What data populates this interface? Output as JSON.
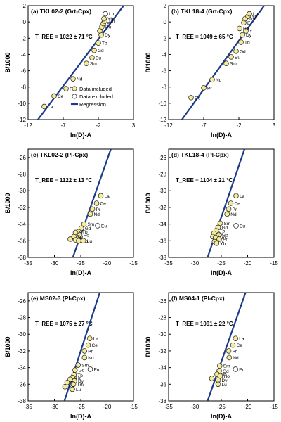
{
  "colors": {
    "included_fill": "#f6eb98",
    "included_stroke": "#333333",
    "excluded_fill": "#ffffff",
    "regression": "#1b3a8a",
    "axis": "#000000"
  },
  "legend": {
    "included": "Data included",
    "excluded": "Data excluded",
    "regression": "Regression"
  },
  "chart_data": [
    {
      "type": "scatter",
      "title": "(a) TKL02-2 (Grt-Cpx)",
      "temperature": "T_REE = 1022 ± 71 °C",
      "xlabel": "ln(D)-A",
      "ylabel": "B/1000",
      "xlim": [
        -12,
        3
      ],
      "ylim": [
        -12,
        2
      ],
      "xticks": [
        -12,
        -7,
        -2,
        3
      ],
      "yticks": [
        2,
        0,
        -2,
        -4,
        -6,
        -8,
        -10,
        -12
      ],
      "legend": "bottom-right",
      "regression": [
        [
          -10.6,
          -12
        ],
        [
          1.6,
          2
        ]
      ],
      "points": [
        {
          "label": "La",
          "x": -9.7,
          "y": -10.4,
          "included": true
        },
        {
          "label": "Ce",
          "x": -8.3,
          "y": -9.1,
          "included": true
        },
        {
          "label": "Pr",
          "x": -6.6,
          "y": -8.2,
          "included": true
        },
        {
          "label": "Nd",
          "x": -5.6,
          "y": -7.0,
          "included": true
        },
        {
          "label": "Sm",
          "x": -3.7,
          "y": -5.1,
          "included": true
        },
        {
          "label": "Eu",
          "x": -2.9,
          "y": -4.4,
          "included": true
        },
        {
          "label": "Gd",
          "x": -2.6,
          "y": -3.5,
          "included": true
        },
        {
          "label": "Tb",
          "x": -2.0,
          "y": -2.6,
          "included": true
        },
        {
          "label": "Dy",
          "x": -1.6,
          "y": -1.6,
          "included": true
        },
        {
          "label": "Y",
          "x": -1.8,
          "y": -1.1,
          "included": true
        },
        {
          "label": "Ho",
          "x": -1.5,
          "y": -0.6,
          "included": true
        },
        {
          "label": "Er",
          "x": -1.3,
          "y": -0.2,
          "included": true
        },
        {
          "label": "Tm",
          "x": -1.1,
          "y": 0.1,
          "included": true
        },
        {
          "label": "Yb",
          "x": -1.2,
          "y": 0.4,
          "included": true
        },
        {
          "label": "Lu",
          "x": -1.0,
          "y": 1.0,
          "included": false
        }
      ]
    },
    {
      "type": "scatter",
      "title": "(b) TKL18-4 (Grt-Cpx)",
      "temperature": "T_REE = 1049 ± 65 °C",
      "xlabel": "ln(D)-A",
      "ylabel": "B/1000",
      "xlim": [
        -12,
        3
      ],
      "ylim": [
        -12,
        2
      ],
      "xticks": [
        -12,
        -7,
        -2,
        3
      ],
      "yticks": [
        2,
        0,
        -2,
        -4,
        -6,
        -8,
        -10,
        -12
      ],
      "regression": [
        [
          -10.1,
          -12
        ],
        [
          1.6,
          2
        ]
      ],
      "points": [
        {
          "label": "Ce",
          "x": -8.8,
          "y": -9.3,
          "included": true
        },
        {
          "label": "Pr",
          "x": -7.0,
          "y": -8.1,
          "included": true
        },
        {
          "label": "Nd",
          "x": -5.8,
          "y": -7.1,
          "included": true
        },
        {
          "label": "Sm",
          "x": -3.8,
          "y": -5.1,
          "included": true
        },
        {
          "label": "Eu",
          "x": -3.1,
          "y": -4.3,
          "included": true
        },
        {
          "label": "Gd",
          "x": -2.4,
          "y": -3.6,
          "included": true
        },
        {
          "label": "Tb",
          "x": -1.7,
          "y": -2.5,
          "included": true
        },
        {
          "label": "Dy",
          "x": -1.5,
          "y": -1.6,
          "included": true
        },
        {
          "label": "Y",
          "x": -1.0,
          "y": -1.1,
          "included": true
        },
        {
          "label": "Ho",
          "x": -1.9,
          "y": -0.8,
          "included": true
        },
        {
          "label": "Er",
          "x": -1.3,
          "y": -0.1,
          "included": true
        },
        {
          "label": "Tm",
          "x": -1.1,
          "y": 0.4,
          "included": true
        },
        {
          "label": "Yb",
          "x": -0.7,
          "y": 0.7,
          "included": true
        },
        {
          "label": "Lu",
          "x": -0.5,
          "y": 1.0,
          "included": true
        }
      ]
    },
    {
      "type": "scatter",
      "title": "(c) TKL02-2 (Pl-Cpx)",
      "temperature": "T_REE = 1122 ± 13 °C",
      "xlabel": "ln(D)-A",
      "ylabel": "B/1000",
      "xlim": [
        -35,
        -15
      ],
      "ylim": [
        -38,
        -25
      ],
      "xticks": [
        -35,
        -30,
        -25,
        -20,
        -15
      ],
      "yticks": [
        -26,
        -28,
        -30,
        -32,
        -34,
        -36,
        -38
      ],
      "regression": [
        [
          -26.5,
          -38
        ],
        [
          -19.3,
          -25
        ]
      ],
      "points": [
        {
          "label": "La",
          "x": -21.2,
          "y": -30.6,
          "included": true
        },
        {
          "label": "Ce",
          "x": -22.0,
          "y": -31.5,
          "included": true
        },
        {
          "label": "Pr",
          "x": -22.8,
          "y": -32.2,
          "included": true
        },
        {
          "label": "Nd",
          "x": -23.2,
          "y": -32.8,
          "included": true
        },
        {
          "label": "Sm",
          "x": -24.4,
          "y": -34.0,
          "included": true
        },
        {
          "label": "Eu",
          "x": -21.8,
          "y": -34.2,
          "included": false
        },
        {
          "label": "Gd",
          "x": -24.9,
          "y": -34.5,
          "included": true
        },
        {
          "label": "Tb",
          "x": -25.4,
          "y": -34.9,
          "included": true
        },
        {
          "label": "Y",
          "x": -26.0,
          "y": -35.0,
          "included": true
        },
        {
          "label": "Ho",
          "x": -25.2,
          "y": -35.3,
          "included": true
        },
        {
          "label": "Dy",
          "x": -26.3,
          "y": -35.5,
          "included": true
        },
        {
          "label": "Er",
          "x": -27.0,
          "y": -35.8,
          "included": true
        },
        {
          "label": "Tm",
          "x": -26.0,
          "y": -35.9,
          "included": true
        },
        {
          "label": "Yb",
          "x": -25.4,
          "y": -36.0,
          "included": true
        },
        {
          "label": "Lu",
          "x": -24.5,
          "y": -36.0,
          "included": true
        }
      ]
    },
    {
      "type": "scatter",
      "title": "(d) TKL18-4 (Pl-Cpx)",
      "temperature": "T_REE = 1104 ± 21 °C",
      "xlabel": "ln(D)-A",
      "ylabel": "B/1000",
      "xlim": [
        -35,
        -15
      ],
      "ylim": [
        -38,
        -25
      ],
      "xticks": [
        -35,
        -30,
        -25,
        -20,
        -15
      ],
      "yticks": [
        -26,
        -28,
        -30,
        -32,
        -34,
        -36,
        -38
      ],
      "regression": [
        [
          -27.6,
          -38
        ],
        [
          -20.6,
          -25
        ]
      ],
      "points": [
        {
          "label": "La",
          "x": -22.2,
          "y": -30.6,
          "included": true
        },
        {
          "label": "Ce",
          "x": -23.2,
          "y": -31.5,
          "included": true
        },
        {
          "label": "Pr",
          "x": -23.6,
          "y": -32.2,
          "included": true
        },
        {
          "label": "Nd",
          "x": -23.9,
          "y": -32.8,
          "included": true
        },
        {
          "label": "Sm",
          "x": -25.2,
          "y": -33.9,
          "included": true
        },
        {
          "label": "Eu",
          "x": -22.2,
          "y": -34.2,
          "included": false
        },
        {
          "label": "Gd",
          "x": -25.6,
          "y": -34.4,
          "included": true
        },
        {
          "label": "Tb",
          "x": -26.0,
          "y": -34.8,
          "included": true
        },
        {
          "label": "Dy",
          "x": -26.4,
          "y": -35.1,
          "included": true
        },
        {
          "label": "Ho",
          "x": -25.5,
          "y": -35.3,
          "included": true
        },
        {
          "label": "Y",
          "x": -26.6,
          "y": -35.5,
          "included": true
        },
        {
          "label": "Tm",
          "x": -26.1,
          "y": -35.6,
          "included": true
        },
        {
          "label": "Er",
          "x": -25.4,
          "y": -35.8,
          "included": true
        },
        {
          "label": "Lu",
          "x": -26.3,
          "y": -36.1,
          "included": true
        },
        {
          "label": "Yb",
          "x": -25.9,
          "y": -36.3,
          "included": true
        }
      ]
    },
    {
      "type": "scatter",
      "title": "(e) MS02-3 (Pl-Cpx)",
      "temperature": "T_REE = 1075 ± 27 °C",
      "xlabel": "ln(D)-A",
      "ylabel": "B/1000",
      "xlim": [
        -35,
        -15
      ],
      "ylim": [
        -38,
        -25
      ],
      "xticks": [
        -35,
        -30,
        -25,
        -20,
        -15
      ],
      "yticks": [
        -26,
        -28,
        -30,
        -32,
        -34,
        -36,
        -38
      ],
      "regression": [
        [
          -28.1,
          -38
        ],
        [
          -21.4,
          -25
        ]
      ],
      "points": [
        {
          "label": "La",
          "x": -23.3,
          "y": -30.5,
          "included": true
        },
        {
          "label": "Ce",
          "x": -23.6,
          "y": -31.3,
          "included": true
        },
        {
          "label": "Pr",
          "x": -24.3,
          "y": -32.0,
          "included": true
        },
        {
          "label": "Nd",
          "x": -24.3,
          "y": -32.8,
          "included": true
        },
        {
          "label": "Sm",
          "x": -25.5,
          "y": -33.7,
          "included": true
        },
        {
          "label": "Eu",
          "x": -23.2,
          "y": -34.2,
          "included": false
        },
        {
          "label": "Gd",
          "x": -26.1,
          "y": -34.3,
          "included": true
        },
        {
          "label": "Tb",
          "x": -26.3,
          "y": -34.9,
          "included": true
        },
        {
          "label": "Ho",
          "x": -26.6,
          "y": -35.2,
          "included": true
        },
        {
          "label": "Y",
          "x": -27.0,
          "y": -35.4,
          "included": true
        },
        {
          "label": "Dy",
          "x": -26.2,
          "y": -35.6,
          "included": true
        },
        {
          "label": "Er",
          "x": -27.6,
          "y": -35.8,
          "included": true
        },
        {
          "label": "Tm",
          "x": -26.4,
          "y": -36.0,
          "included": true
        },
        {
          "label": "Yb",
          "x": -28.0,
          "y": -36.3,
          "included": true
        },
        {
          "label": "Lu",
          "x": -26.6,
          "y": -36.6,
          "included": true
        }
      ]
    },
    {
      "type": "scatter",
      "title": "(f) MS04-1 (Pl-Cpx)",
      "temperature": "T_REE = 1091 ± 22 °C",
      "xlabel": "ln(D)-A",
      "ylabel": "B/1000",
      "xlim": [
        -35,
        -15
      ],
      "ylim": [
        -38,
        -25
      ],
      "xticks": [
        -35,
        -30,
        -25,
        -20,
        -15
      ],
      "yticks": [
        -26,
        -28,
        -30,
        -32,
        -34,
        -36,
        -38
      ],
      "regression": [
        [
          -27.6,
          -38
        ],
        [
          -20.4,
          -25
        ]
      ],
      "points": [
        {
          "label": "La",
          "x": -22.3,
          "y": -30.5,
          "included": true
        },
        {
          "label": "Ce",
          "x": -22.8,
          "y": -31.3,
          "included": true
        },
        {
          "label": "Pr",
          "x": -23.6,
          "y": -32.0,
          "included": true
        },
        {
          "label": "Nd",
          "x": -23.5,
          "y": -32.8,
          "included": true
        },
        {
          "label": "Sm",
          "x": -25.3,
          "y": -33.8,
          "included": true
        },
        {
          "label": "Eu",
          "x": -22.3,
          "y": -34.2,
          "included": false
        },
        {
          "label": "Gd",
          "x": -25.4,
          "y": -34.4,
          "included": true
        },
        {
          "label": "Tb",
          "x": -25.8,
          "y": -34.8,
          "included": true
        },
        {
          "label": "Ho",
          "x": -25.2,
          "y": -35.0,
          "included": true
        },
        {
          "label": "Y",
          "x": -26.8,
          "y": -35.3,
          "included": true
        },
        {
          "label": "Dy",
          "x": -25.6,
          "y": -35.5,
          "included": true
        },
        {
          "label": "Lu",
          "x": -25.6,
          "y": -36.0,
          "included": true
        }
      ]
    }
  ]
}
